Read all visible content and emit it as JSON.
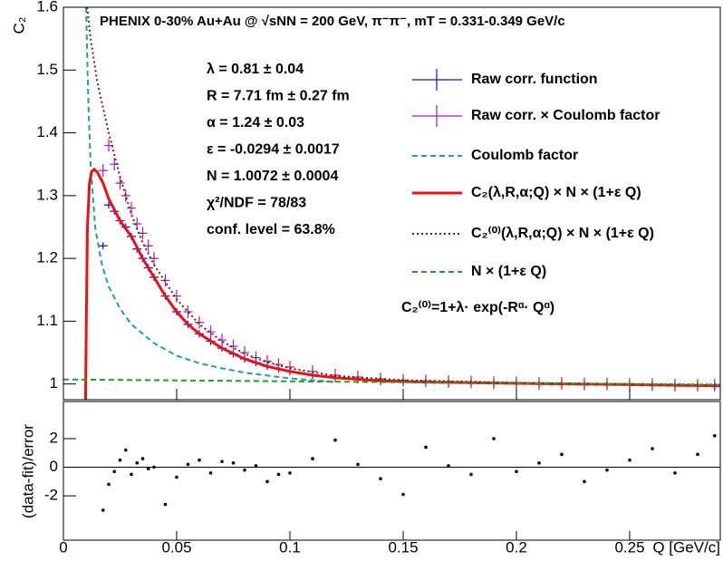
{
  "chart_data": [
    {
      "type": "line",
      "title": "PHENIX 0-30% Au+Au @ √sNN = 200 GeV, π⁻π⁻,  mT = 0.331-0.349 GeV/c",
      "ylabel": "C₂",
      "annotations": [
        "λ = 0.81 ± 0.04",
        "R = 7.71 fm ± 0.27 fm",
        "α = 1.24 ± 0.03",
        "ε = -0.0294 ± 0.0017",
        "N = 1.0072 ± 0.0004",
        "χ²/NDF = 78/83",
        "conf. level = 63.8%"
      ],
      "formula": "C₂⁽⁰⁾=1+λ· exp(-Rᵅ· Qᵅ)",
      "xlim": [
        0,
        0.29
      ],
      "ylim": [
        0.975,
        1.6
      ],
      "yticks": [
        1,
        1.1,
        1.2,
        1.3,
        1.4,
        1.5,
        1.6
      ],
      "series": [
        {
          "name": "Raw corr. function",
          "color": "#1010d0",
          "kind": "points",
          "x": [
            0.0175,
            0.02,
            0.0225,
            0.025,
            0.0275,
            0.03,
            0.0325,
            0.035,
            0.0375,
            0.04,
            0.045,
            0.05,
            0.055,
            0.06,
            0.065,
            0.07,
            0.075,
            0.08,
            0.085,
            0.09,
            0.095,
            0.1,
            0.11,
            0.12,
            0.13,
            0.14,
            0.15,
            0.16,
            0.17,
            0.18,
            0.19,
            0.2,
            0.21,
            0.22,
            0.23,
            0.24,
            0.25,
            0.26,
            0.27,
            0.28,
            0.2875
          ],
          "values": [
            1.22,
            1.285,
            1.275,
            1.26,
            1.25,
            1.235,
            1.215,
            1.2,
            1.185,
            1.17,
            1.14,
            1.115,
            1.095,
            1.08,
            1.068,
            1.057,
            1.048,
            1.04,
            1.034,
            1.028,
            1.024,
            1.02,
            1.014,
            1.01,
            1.007,
            1.005,
            1.004,
            1.003,
            1.002,
            1.002,
            1.001,
            1.001,
            1.0,
            1.0,
            0.999,
            0.999,
            0.999,
            0.998,
            0.998,
            0.997,
            0.997
          ]
        },
        {
          "name": "Raw corr. × Coulomb factor",
          "color": "#a020a0",
          "kind": "points",
          "x": [
            0.0175,
            0.02,
            0.0225,
            0.025,
            0.0275,
            0.03,
            0.0325,
            0.035,
            0.0375,
            0.04,
            0.045,
            0.05,
            0.055,
            0.06,
            0.065,
            0.07,
            0.075,
            0.08,
            0.085,
            0.09,
            0.095,
            0.1,
            0.11,
            0.12,
            0.13,
            0.14,
            0.15,
            0.16,
            0.17,
            0.18,
            0.19,
            0.2,
            0.21,
            0.22,
            0.23,
            0.24,
            0.25,
            0.26,
            0.27,
            0.28,
            0.2875
          ],
          "values": [
            1.34,
            1.38,
            1.35,
            1.32,
            1.3,
            1.28,
            1.255,
            1.24,
            1.22,
            1.2,
            1.165,
            1.14,
            1.115,
            1.098,
            1.083,
            1.07,
            1.06,
            1.05,
            1.042,
            1.036,
            1.031,
            1.027,
            1.02,
            1.014,
            1.011,
            1.008,
            1.006,
            1.005,
            1.004,
            1.003,
            1.002,
            1.002,
            1.001,
            1.001,
            1.0,
            1.0,
            0.999,
            0.999,
            0.998,
            0.998,
            0.998
          ]
        },
        {
          "name": "Coulomb factor",
          "color": "#20a0a0",
          "kind": "line",
          "dash": "dashed",
          "x": [
            0.01,
            0.011,
            0.012,
            0.014,
            0.017,
            0.02,
            0.025,
            0.03,
            0.04,
            0.05,
            0.06,
            0.07,
            0.08,
            0.1,
            0.12
          ],
          "values": [
            1.6,
            1.45,
            1.35,
            1.25,
            1.19,
            1.155,
            1.12,
            1.095,
            1.065,
            1.045,
            1.033,
            1.025,
            1.018,
            1.009,
            1.003
          ]
        },
        {
          "name": "C₂(λ,R,α;Q) × N × (1+ε Q)",
          "color": "#ee1010",
          "kind": "line",
          "dash": "solid",
          "x": [
            0.0098,
            0.0101,
            0.0106,
            0.0115,
            0.0125,
            0.0136,
            0.015,
            0.0175,
            0.02,
            0.025,
            0.03,
            0.035,
            0.04,
            0.045,
            0.05,
            0.055,
            0.06,
            0.07,
            0.08,
            0.09,
            0.1,
            0.11,
            0.12,
            0.14,
            0.16,
            0.2,
            0.25,
            0.29
          ],
          "values": [
            0.975,
            1.1,
            1.25,
            1.32,
            1.338,
            1.342,
            1.337,
            1.32,
            1.295,
            1.26,
            1.235,
            1.2,
            1.17,
            1.14,
            1.115,
            1.095,
            1.08,
            1.057,
            1.04,
            1.028,
            1.02,
            1.014,
            1.01,
            1.005,
            1.003,
            1.001,
            0.999,
            0.997
          ]
        },
        {
          "name": "C₂⁽⁰⁾(λ,R,α;Q) × N × (1+ε Q)",
          "color": "#801818",
          "kind": "line",
          "dash": "dotted",
          "x": [
            0.0105,
            0.012,
            0.015,
            0.02,
            0.025,
            0.03,
            0.035,
            0.04,
            0.05,
            0.06,
            0.07,
            0.08,
            0.09,
            0.1,
            0.12,
            0.15,
            0.2,
            0.25,
            0.29
          ],
          "values": [
            1.6,
            1.55,
            1.48,
            1.4,
            1.33,
            1.27,
            1.225,
            1.19,
            1.135,
            1.095,
            1.068,
            1.048,
            1.035,
            1.025,
            1.013,
            1.006,
            1.002,
            1.0,
            0.999
          ]
        },
        {
          "name": "N × (1+ε Q)",
          "color": "#20a020",
          "kind": "line",
          "dash": "dashed",
          "x": [
            0,
            0.29
          ],
          "values": [
            1.0072,
            0.9986
          ]
        }
      ]
    },
    {
      "type": "scatter",
      "ylabel": "(data-fit)/error",
      "xlabel": "Q [GeV/c]",
      "xlim": [
        0,
        0.29
      ],
      "xticks": [
        0,
        0.05,
        0.1,
        0.15,
        0.2,
        0.25
      ],
      "ylim": [
        -5.1,
        4.6
      ],
      "yticks": [
        -2,
        0,
        2
      ],
      "reference_line": 0,
      "color": "#000000",
      "x": [
        0.0175,
        0.02,
        0.0225,
        0.025,
        0.0275,
        0.03,
        0.0325,
        0.035,
        0.0375,
        0.04,
        0.045,
        0.05,
        0.055,
        0.06,
        0.065,
        0.07,
        0.075,
        0.08,
        0.085,
        0.09,
        0.095,
        0.1,
        0.11,
        0.12,
        0.13,
        0.14,
        0.15,
        0.16,
        0.17,
        0.18,
        0.19,
        0.2,
        0.21,
        0.22,
        0.23,
        0.24,
        0.25,
        0.26,
        0.27,
        0.28,
        0.2875
      ],
      "values": [
        -3.0,
        -1.2,
        -0.3,
        0.5,
        1.2,
        -0.5,
        0.3,
        0.6,
        -0.1,
        0.0,
        -2.6,
        -0.7,
        0.2,
        0.5,
        -0.4,
        0.4,
        0.3,
        -0.2,
        0.1,
        -1.0,
        -0.5,
        -0.4,
        0.6,
        1.9,
        0.2,
        -0.8,
        -1.9,
        1.4,
        0.1,
        -0.5,
        2.0,
        -0.3,
        0.3,
        0.9,
        -1.0,
        -0.2,
        0.5,
        1.3,
        -0.4,
        0.9,
        2.2
      ]
    }
  ]
}
